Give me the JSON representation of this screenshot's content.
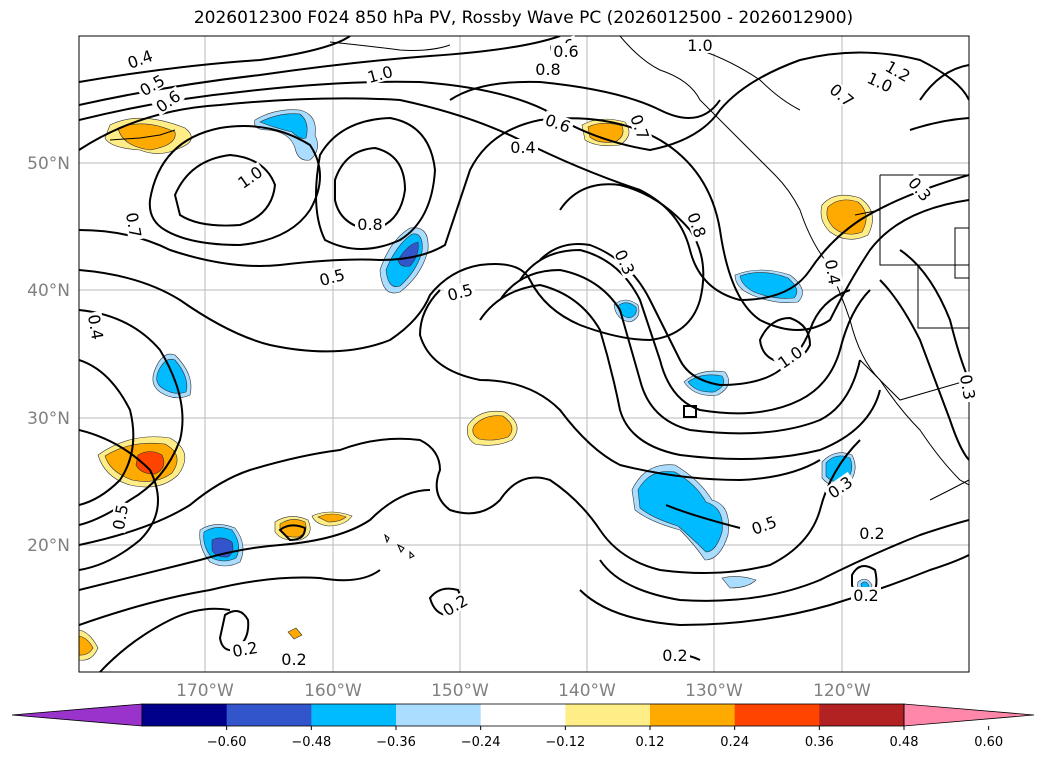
{
  "title": "2026012300 F024 850 hPa PV, Rossby Wave PC (2026012500 - 2026012900)",
  "lat_labels": [
    "50°N",
    "40°N",
    "30°N",
    "20°N"
  ],
  "lon_labels": [
    "170°W",
    "160°W",
    "150°W",
    "140°W",
    "130°W",
    "120°W"
  ],
  "colorbar": {
    "tick_labels": [
      "−0.60",
      "−0.48",
      "−0.36",
      "−0.24",
      "−0.12",
      "0.12",
      "0.24",
      "0.36",
      "0.48",
      "0.60"
    ],
    "colors": [
      "#9933cc",
      "#00008b",
      "#3355cc",
      "#00bbff",
      "#aaddff",
      "#ffffff",
      "#ffee88",
      "#ffaa00",
      "#ff4400",
      "#b22222",
      "#ff88aa"
    ]
  },
  "contour_labels": [
    "0.4",
    "0.5",
    "0.6",
    "0.6",
    "1.0",
    "0.8",
    "1.0",
    "1.2",
    "1.0",
    "0.7",
    "0.6",
    "0.6",
    "0.4",
    "1.0",
    "0.8",
    "0.8",
    "0.3",
    "0.7",
    "0.7",
    "0.5",
    "0.5",
    "0.3",
    "0.4",
    "0.4",
    "1.0",
    "0.3",
    "0.3",
    "0.5",
    "0.2",
    "0.2",
    "0.5",
    "0.2",
    "0.2",
    "0.2",
    "0.2"
  ]
}
